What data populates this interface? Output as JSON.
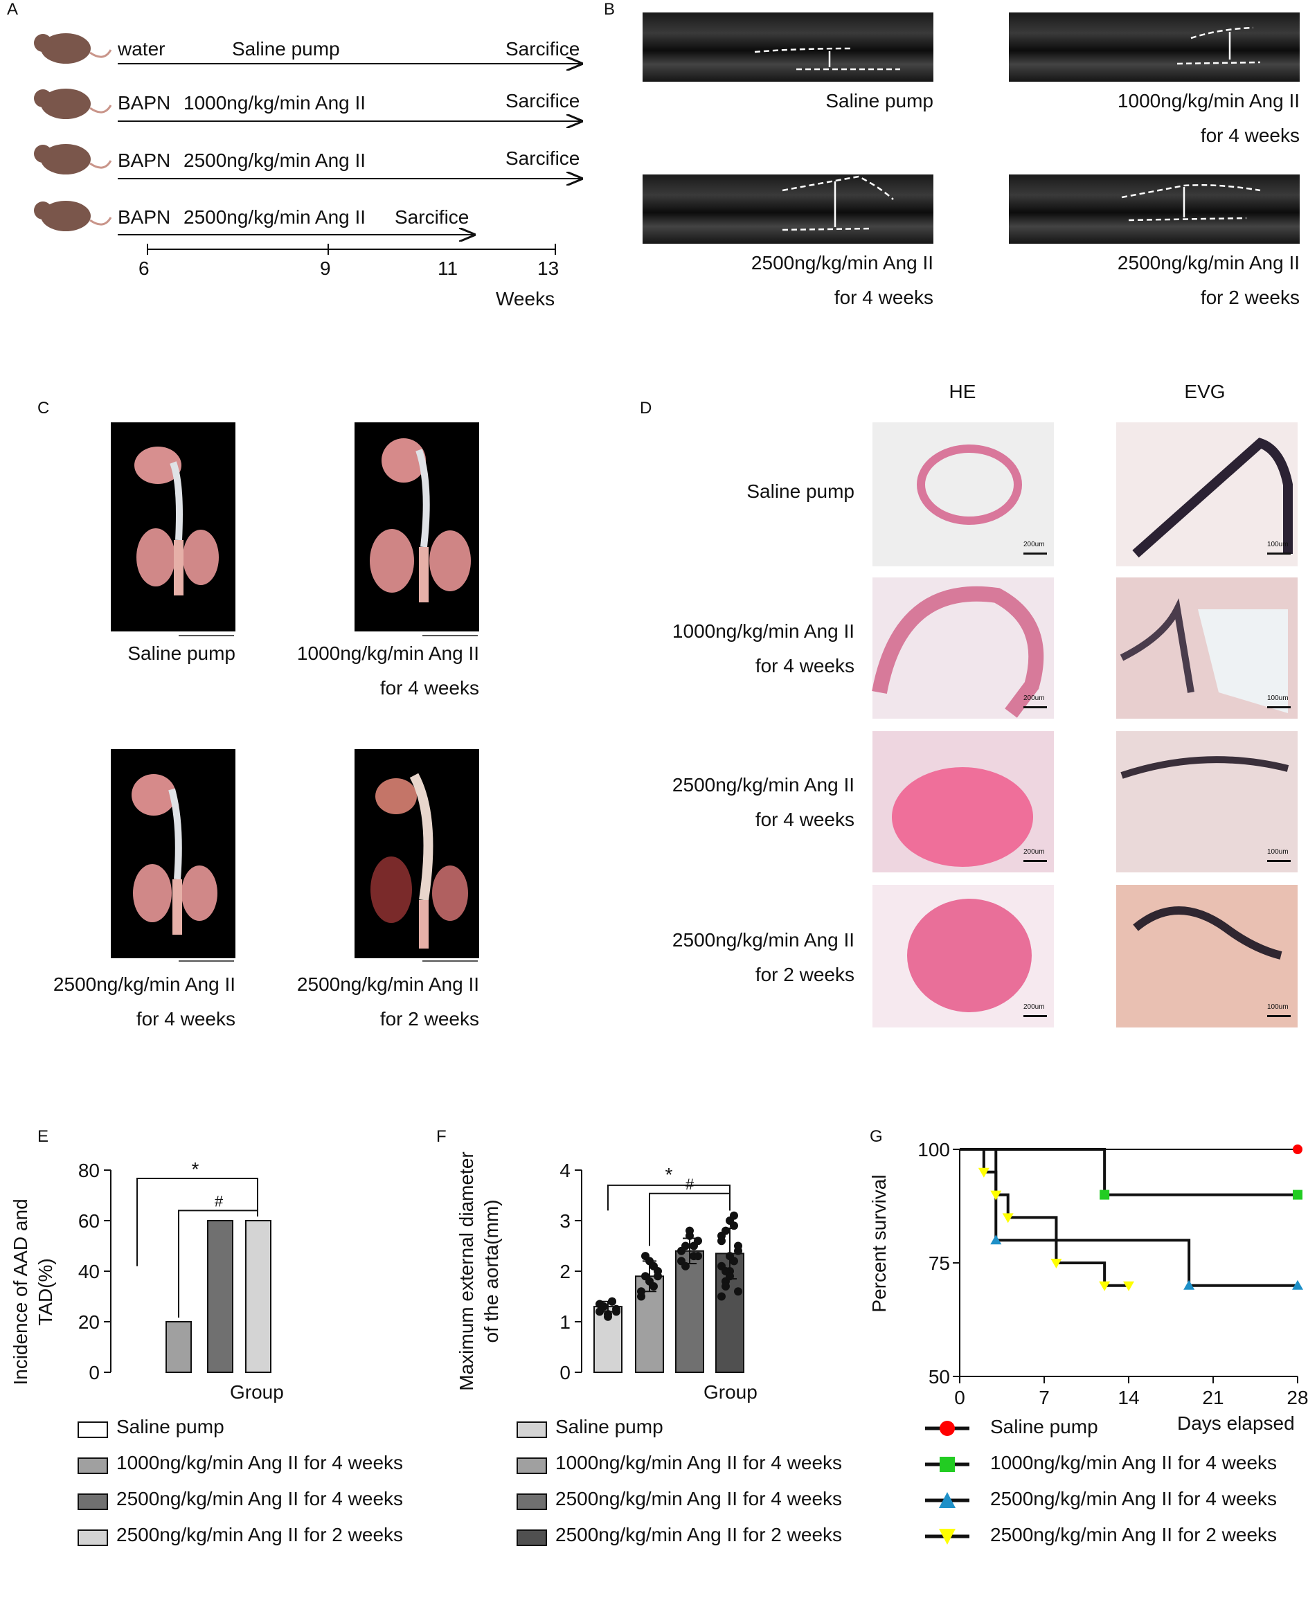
{
  "panels": {
    "A": {
      "letter": "A",
      "rows": [
        {
          "pre": "water",
          "text": "Saline pump",
          "end": "Sarcifice"
        },
        {
          "pre": "BAPN",
          "text": "1000ng/kg/min Ang II",
          "end": "Sarcifice"
        },
        {
          "pre": "BAPN",
          "text": "2500ng/kg/min Ang II",
          "end": "Sarcifice"
        },
        {
          "pre": "BAPN",
          "text": "2500ng/kg/min Ang II",
          "end": "Sarcifice"
        }
      ],
      "ticks": [
        "6",
        "9",
        "11",
        "13"
      ],
      "axis_label": "Weeks"
    },
    "B": {
      "letter": "B",
      "captions": [
        {
          "l1": "Saline pump",
          "l2": ""
        },
        {
          "l1": "1000ng/kg/min Ang II",
          "l2": "for 4 weeks"
        },
        {
          "l1": "2500ng/kg/min Ang II",
          "l2": "for 4 weeks"
        },
        {
          "l1": "2500ng/kg/min Ang II",
          "l2": "for 2 weeks"
        }
      ]
    },
    "C": {
      "letter": "C",
      "captions": [
        {
          "l1": "Saline pump",
          "l2": ""
        },
        {
          "l1": "1000ng/kg/min Ang II",
          "l2": "for 4 weeks"
        },
        {
          "l1": "2500ng/kg/min Ang II",
          "l2": "for 4 weeks"
        },
        {
          "l1": "2500ng/kg/min Ang II",
          "l2": "for 2 weeks"
        }
      ]
    },
    "D": {
      "letter": "D",
      "col_he": "HE",
      "col_evg": "EVG",
      "rows": [
        {
          "l1": "Saline pump",
          "l2": ""
        },
        {
          "l1": "1000ng/kg/min Ang II",
          "l2": "for 4 weeks"
        },
        {
          "l1": "2500ng/kg/min Ang II",
          "l2": "for 4 weeks"
        },
        {
          "l1": "2500ng/kg/min Ang II",
          "l2": "for 2 weeks"
        }
      ],
      "scale_he": "200um",
      "scale_evg": "100um"
    },
    "E": {
      "letter": "E"
    },
    "F": {
      "letter": "F"
    },
    "G": {
      "letter": "G"
    }
  },
  "colors": {
    "saline": "#ffffff",
    "g1000": "#a0a0a0",
    "g2500_4": "#707070",
    "g2500_2": "#d4d4d4",
    "g2500_2_dark": "#505050",
    "surv_saline": "#ff0000",
    "surv_1000": "#22cc22",
    "surv_2500_4": "#1e90c8",
    "surv_2500_2": "#ffff00"
  },
  "chart_data": [
    {
      "id": "E",
      "type": "bar",
      "ylabel_l1": "Incidence of AAD and",
      "ylabel_l2": "TAD(%)",
      "xlabel": "Group",
      "ylim": [
        0,
        80
      ],
      "yticks": [
        "0",
        "20",
        "40",
        "60",
        "80"
      ],
      "categories": [
        "Saline pump",
        "1000ng/kg/min Ang II for 4 weeks",
        "2500ng/kg/min Ang II for 4 weeks",
        "2500ng/kg/min Ang II for 2 weeks"
      ],
      "values": [
        0,
        20,
        60,
        60
      ],
      "annotations": [
        "*",
        "#"
      ],
      "legend": [
        "Saline pump",
        "1000ng/kg/min Ang II for 4 weeks",
        "2500ng/kg/min Ang II for 4 weeks",
        "2500ng/kg/min Ang II for 2 weeks"
      ]
    },
    {
      "id": "F",
      "type": "bar",
      "ylabel_l1": "Maximum external diameter",
      "ylabel_l2": "of the aorta(mm)",
      "xlabel": "Group",
      "ylim": [
        0,
        4
      ],
      "yticks": [
        "0",
        "1",
        "2",
        "3",
        "4"
      ],
      "categories": [
        "Saline pump",
        "1000ng/kg/min Ang II for 4 weeks",
        "2500ng/kg/min Ang II for 4 weeks",
        "2500ng/kg/min Ang II for 2 weeks"
      ],
      "values": [
        1.3,
        1.9,
        2.4,
        2.35
      ],
      "errors": [
        0.1,
        0.3,
        0.25,
        0.5
      ],
      "points": [
        [
          1.2,
          1.3,
          1.1,
          1.4,
          1.25,
          1.35,
          1.3,
          1.15,
          1.4,
          1.2
        ],
        [
          1.5,
          1.9,
          2.2,
          1.7,
          2.0,
          1.6,
          2.3,
          1.8,
          2.1,
          1.9
        ],
        [
          2.2,
          2.5,
          2.7,
          2.3,
          2.6,
          2.4,
          2.1,
          2.8,
          2.5,
          2.3
        ],
        [
          1.5,
          1.8,
          2.0,
          2.2,
          2.4,
          2.6,
          2.8,
          3.0,
          3.1,
          2.5,
          2.1,
          1.7,
          2.3,
          2.9,
          1.6,
          2.7,
          2.0,
          1.9
        ]
      ],
      "annotations": [
        "*",
        "#"
      ],
      "legend": [
        "Saline pump",
        "1000ng/kg/min Ang II for 4 weeks",
        "2500ng/kg/min Ang II for 4 weeks",
        "2500ng/kg/min Ang II for 2 weeks"
      ]
    },
    {
      "id": "G",
      "type": "line",
      "ylabel": "Percent survival",
      "xlabel": "Days elapsed",
      "xlim": [
        0,
        28
      ],
      "ylim": [
        50,
        100
      ],
      "xticks": [
        "0",
        "7",
        "14",
        "21",
        "28"
      ],
      "yticks": [
        "50",
        "75",
        "100"
      ],
      "series": [
        {
          "name": "Saline pump",
          "marker": "circle",
          "steps": [
            [
              0,
              100
            ],
            [
              28,
              100
            ]
          ],
          "markers": [
            [
              28,
              100
            ]
          ]
        },
        {
          "name": "1000ng/kg/min Ang II for 4 weeks",
          "marker": "square",
          "steps": [
            [
              0,
              100
            ],
            [
              12,
              100
            ],
            [
              12,
              90
            ],
            [
              28,
              90
            ]
          ],
          "markers": [
            [
              12,
              90
            ],
            [
              28,
              90
            ]
          ]
        },
        {
          "name": "2500ng/kg/min Ang II for 4 weeks",
          "marker": "triangle-up",
          "steps": [
            [
              0,
              100
            ],
            [
              3,
              100
            ],
            [
              3,
              80
            ],
            [
              19,
              80
            ],
            [
              19,
              70
            ],
            [
              28,
              70
            ]
          ],
          "markers": [
            [
              3,
              80
            ],
            [
              19,
              70
            ],
            [
              28,
              70
            ]
          ]
        },
        {
          "name": "2500ng/kg/min Ang II for 2 weeks",
          "marker": "triangle-down",
          "steps": [
            [
              0,
              100
            ],
            [
              2,
              100
            ],
            [
              2,
              95
            ],
            [
              3,
              95
            ],
            [
              3,
              90
            ],
            [
              4,
              90
            ],
            [
              4,
              85
            ],
            [
              8,
              85
            ],
            [
              8,
              75
            ],
            [
              12,
              75
            ],
            [
              12,
              70
            ],
            [
              14,
              70
            ]
          ],
          "markers": [
            [
              2,
              95
            ],
            [
              3,
              90
            ],
            [
              4,
              85
            ],
            [
              8,
              75
            ],
            [
              12,
              70
            ],
            [
              14,
              70
            ]
          ]
        }
      ],
      "legend": [
        "Saline pump",
        "1000ng/kg/min Ang II for 4 weeks",
        "2500ng/kg/min Ang II for 4 weeks",
        "2500ng/kg/min Ang II for 2 weeks"
      ]
    }
  ]
}
